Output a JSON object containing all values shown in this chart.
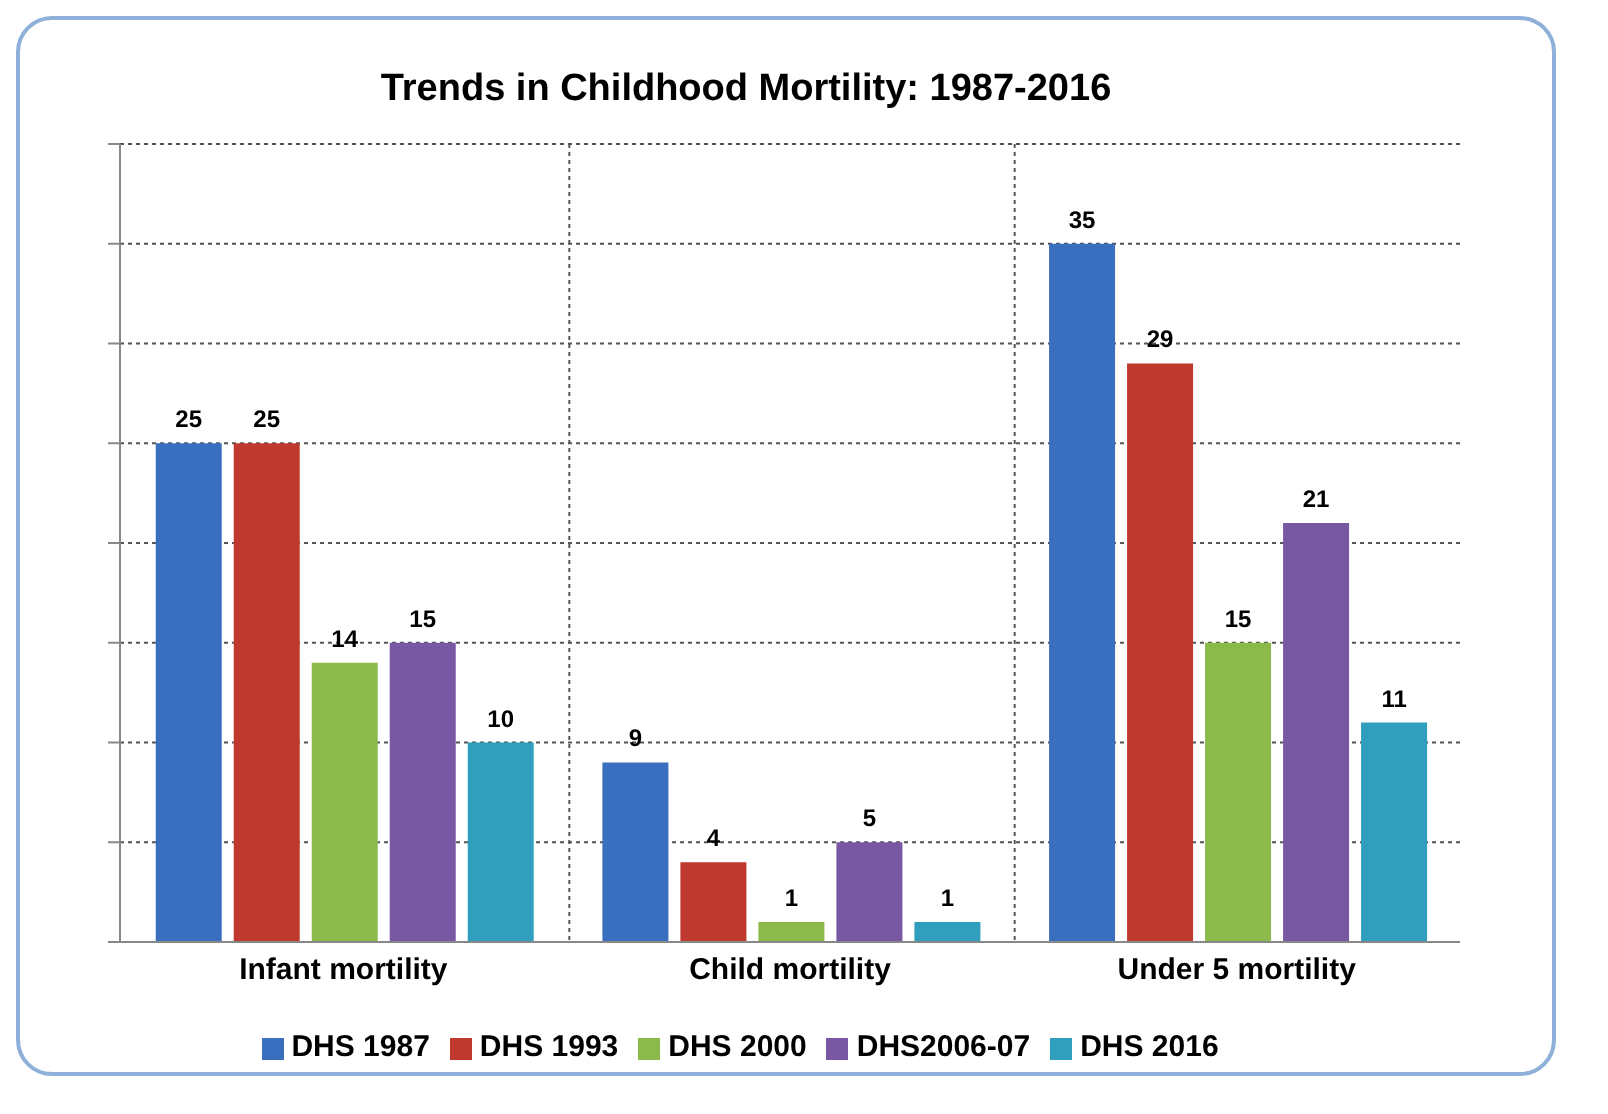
{
  "chart_data": {
    "type": "bar",
    "title": "Trends in Childhood Mortility: 1987-2016",
    "categories": [
      "Infant mortility",
      "Child mortility",
      "Under 5 mortility"
    ],
    "series": [
      {
        "name": "DHS 1987",
        "color": "#3a6fbf",
        "values": [
          25,
          9,
          35
        ]
      },
      {
        "name": "DHS 1993",
        "color": "#c0392f",
        "values": [
          25,
          4,
          29
        ]
      },
      {
        "name": "DHS 2000",
        "color": "#8cba4a",
        "values": [
          14,
          1,
          15
        ]
      },
      {
        "name": "DHS2006-07",
        "color": "#7857a3",
        "values": [
          15,
          5,
          21
        ]
      },
      {
        "name": "DHS 2016",
        "color": "#2f9fbd",
        "values": [
          10,
          1,
          11
        ]
      }
    ],
    "ylim": [
      0,
      40
    ],
    "yticks": [
      {
        "value": 0,
        "label": null
      },
      {
        "value": 5,
        "label": null
      },
      {
        "value": 10,
        "label": null
      },
      {
        "value": 15,
        "label": null
      },
      {
        "value": 20,
        "label": null
      },
      {
        "value": 25,
        "label": null
      },
      {
        "value": 30,
        "label": null
      },
      {
        "value": 35,
        "label": null
      },
      {
        "value": 40,
        "label": null
      }
    ],
    "tick_labels": "x",
    "grid": true,
    "legend": "bottom",
    "data_labels": true
  }
}
